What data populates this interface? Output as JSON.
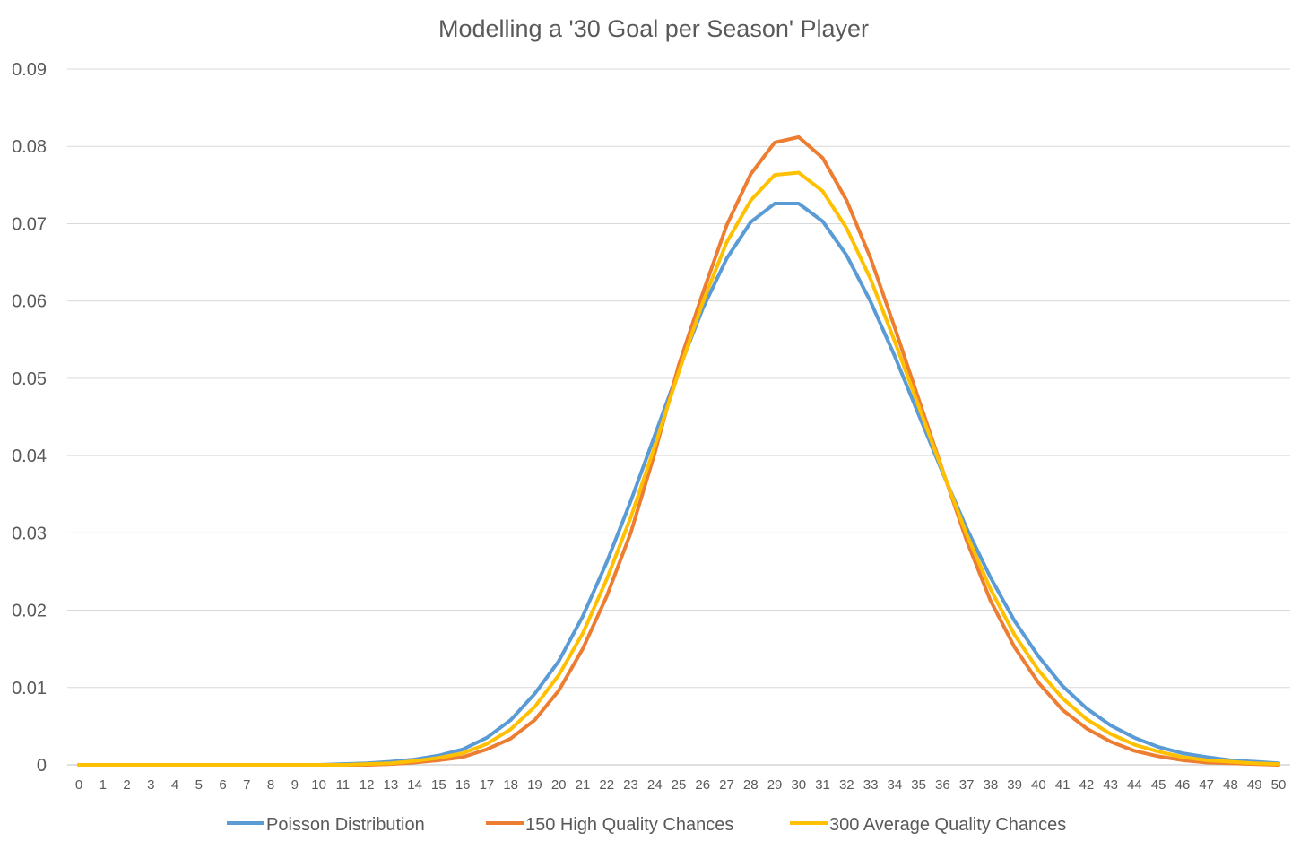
{
  "chart_data": {
    "type": "line",
    "title": "Modelling a '30 Goal per Season' Player",
    "xlabel": "",
    "ylabel": "",
    "ylim": [
      0,
      0.09
    ],
    "y_ticks": [
      "0",
      "0.01",
      "0.02",
      "0.03",
      "0.04",
      "0.05",
      "0.06",
      "0.07",
      "0.08",
      "0.09"
    ],
    "grid": true,
    "legend_position": "bottom",
    "x": [
      0,
      1,
      2,
      3,
      4,
      5,
      6,
      7,
      8,
      9,
      10,
      11,
      12,
      13,
      14,
      15,
      16,
      17,
      18,
      19,
      20,
      21,
      22,
      23,
      24,
      25,
      26,
      27,
      28,
      29,
      30,
      31,
      32,
      33,
      34,
      35,
      36,
      37,
      38,
      39,
      40,
      41,
      42,
      43,
      44,
      45,
      46,
      47,
      48,
      49,
      50
    ],
    "series": [
      {
        "name": "Poisson Distribution",
        "color": "#5B9BD5",
        "values": [
          0,
          0,
          0,
          0,
          0,
          0,
          0,
          0,
          0,
          0,
          0,
          0.0001,
          0.0002,
          0.0004,
          0.0007,
          0.0012,
          0.002,
          0.0035,
          0.0058,
          0.0092,
          0.0134,
          0.0192,
          0.0262,
          0.0341,
          0.0426,
          0.0511,
          0.059,
          0.0655,
          0.0702,
          0.0726,
          0.0726,
          0.0703,
          0.0659,
          0.0599,
          0.0529,
          0.0453,
          0.0378,
          0.0306,
          0.0242,
          0.0186,
          0.014,
          0.0102,
          0.0073,
          0.0051,
          0.0035,
          0.0023,
          0.0015,
          0.001,
          0.0006,
          0.0004,
          0.0002
        ]
      },
      {
        "name": "150 High Quality Chances",
        "color": "#ED7D31",
        "values": [
          0,
          0,
          0,
          0,
          0,
          0,
          0,
          0,
          0,
          0,
          0,
          0,
          0,
          0.0001,
          0.0003,
          0.0006,
          0.001,
          0.002,
          0.0034,
          0.0058,
          0.0096,
          0.015,
          0.0218,
          0.03,
          0.0403,
          0.0517,
          0.061,
          0.0698,
          0.0764,
          0.0805,
          0.0812,
          0.0785,
          0.073,
          0.0655,
          0.0566,
          0.0473,
          0.0381,
          0.029,
          0.0212,
          0.0152,
          0.0106,
          0.0071,
          0.0047,
          0.003,
          0.0018,
          0.0011,
          0.0006,
          0.0003,
          0.0002,
          0.0001,
          0
        ]
      },
      {
        "name": "300 Average Quality Chances",
        "color": "#FFC000",
        "values": [
          0,
          0,
          0,
          0,
          0,
          0,
          0,
          0,
          0,
          0,
          0,
          0,
          0.0001,
          0.0002,
          0.0005,
          0.0009,
          0.0015,
          0.0027,
          0.0046,
          0.0075,
          0.0116,
          0.017,
          0.024,
          0.032,
          0.0412,
          0.0508,
          0.0598,
          0.0676,
          0.073,
          0.0763,
          0.0766,
          0.0742,
          0.0694,
          0.0628,
          0.0548,
          0.0464,
          0.038,
          0.0298,
          0.0227,
          0.0168,
          0.0122,
          0.0086,
          0.0059,
          0.004,
          0.0026,
          0.0017,
          0.001,
          0.0006,
          0.0004,
          0.0002,
          0.0001
        ]
      }
    ]
  }
}
